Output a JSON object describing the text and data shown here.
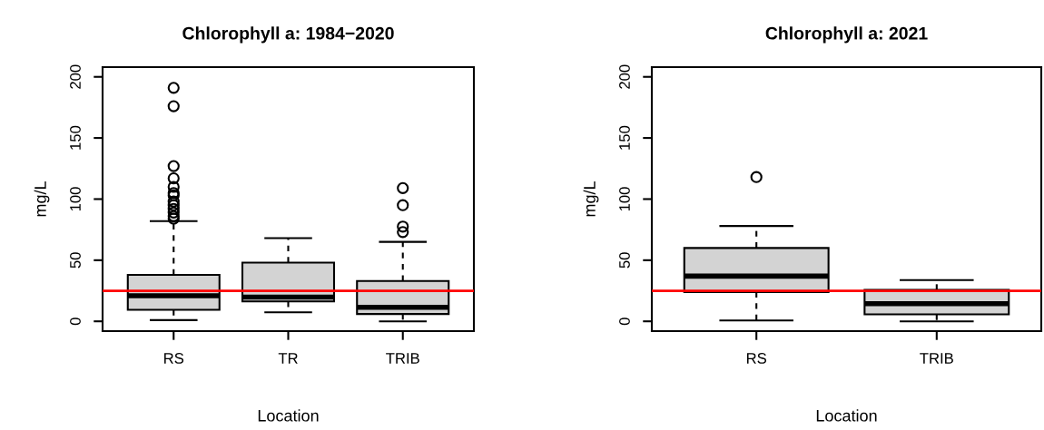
{
  "chart_data": [
    {
      "type": "box",
      "title": "Chlorophyll a: 1984−2020",
      "xlabel": "Location",
      "ylabel": "mg/L",
      "categories": [
        "RS",
        "TR",
        "TRIB"
      ],
      "boxes": [
        {
          "low": 1,
          "q1": 9.4,
          "median": 21,
          "q3": 38,
          "high": 82,
          "outliers": [
            84,
            86,
            89,
            92,
            95,
            98,
            103,
            105,
            110,
            117,
            127,
            176,
            191
          ]
        },
        {
          "low": 7.4,
          "q1": 16.3,
          "median": 19.8,
          "q3": 48,
          "high": 68
        },
        {
          "low": 0,
          "q1": 6,
          "median": 11.4,
          "q3": 33,
          "high": 65,
          "outliers": [
            73,
            77.5,
            95,
            109
          ]
        }
      ],
      "color": "#d3d3d3",
      "ylim": [
        -8,
        208
      ],
      "yticks": [
        0,
        50,
        100,
        150,
        200
      ],
      "grid": false,
      "ref_lines": [
        {
          "axis": "y",
          "value": 25,
          "color": "#ff0000"
        }
      ]
    },
    {
      "type": "box",
      "title": "Chlorophyll a: 2021",
      "xlabel": "Location",
      "ylabel": "mg/L",
      "categories": [
        "RS",
        "TRIB"
      ],
      "boxes": [
        {
          "low": 0.7,
          "q1": 24,
          "median": 37,
          "q3": 60,
          "high": 78,
          "outliers": [
            118
          ]
        },
        {
          "low": 0,
          "q1": 5.7,
          "median": 14.4,
          "q3": 25.7,
          "high": 33.7
        }
      ],
      "color": "#d3d3d3",
      "ylim": [
        -8,
        208
      ],
      "yticks": [
        0,
        50,
        100,
        150,
        200
      ],
      "grid": false,
      "ref_lines": [
        {
          "axis": "y",
          "value": 25,
          "color": "#ff0000"
        }
      ]
    }
  ]
}
